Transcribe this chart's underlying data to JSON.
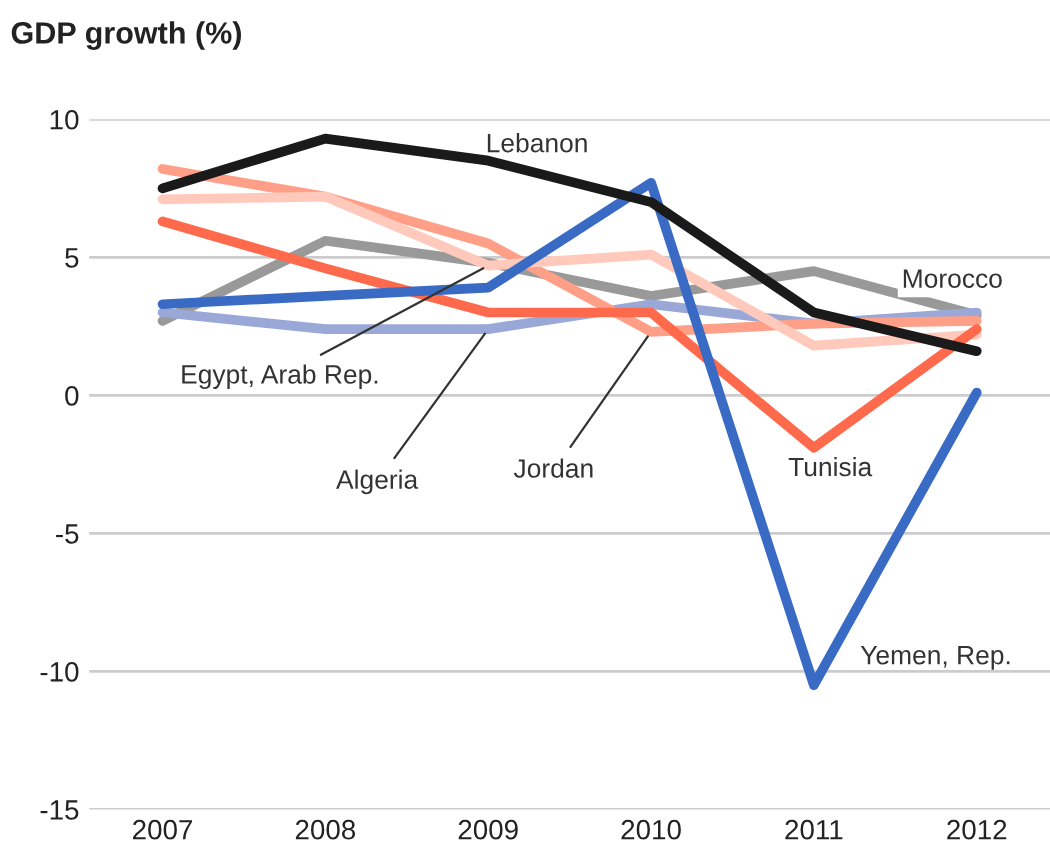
{
  "chart_data": {
    "type": "line",
    "title": "GDP growth (%)",
    "categories": [
      "2007",
      "2008",
      "2009",
      "2010",
      "2011",
      "2012"
    ],
    "series": [
      {
        "name": "Morocco",
        "color": "#999999",
        "values": [
          2.7,
          5.6,
          4.8,
          3.6,
          4.5,
          2.9
        ]
      },
      {
        "name": "Algeria",
        "color": "#9aa8d8",
        "values": [
          3.0,
          2.4,
          2.4,
          3.3,
          2.6,
          3.0
        ]
      },
      {
        "name": "Jordan",
        "color": "#ff9f88",
        "values": [
          8.2,
          7.2,
          5.5,
          2.3,
          2.6,
          2.7
        ]
      },
      {
        "name": "Egypt, Arab Rep.",
        "color": "#ffcabb",
        "values": [
          7.1,
          7.2,
          4.7,
          5.1,
          1.8,
          2.2
        ]
      },
      {
        "name": "Tunisia",
        "color": "#ff6a4d",
        "values": [
          6.3,
          4.6,
          3.0,
          3.0,
          -1.9,
          2.4
        ]
      },
      {
        "name": "Yemen, Rep.",
        "color": "#3a6bc4",
        "values": [
          3.3,
          3.6,
          3.9,
          7.7,
          -10.5,
          0.1
        ]
      },
      {
        "name": "Lebanon",
        "color": "#1a1a1a",
        "values": [
          7.5,
          9.3,
          8.5,
          7.0,
          3.0,
          1.6
        ]
      }
    ],
    "ylim": [
      -15,
      10
    ],
    "yticks": [
      -15,
      -10,
      -5,
      0,
      5,
      10
    ],
    "grid": "y",
    "legend": false,
    "line_style": "solid",
    "marker": "none"
  }
}
